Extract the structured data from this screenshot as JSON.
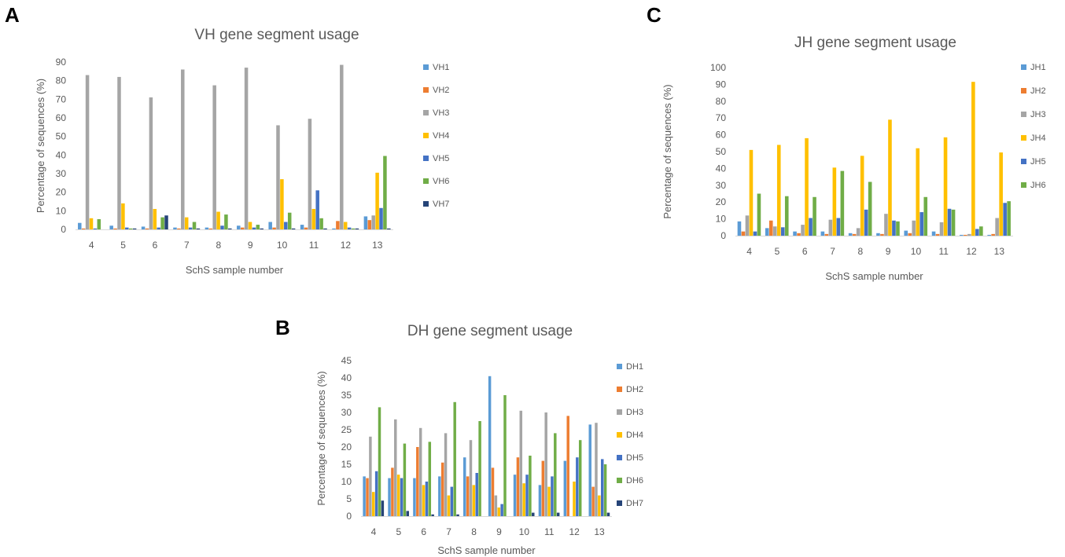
{
  "panels": [
    {
      "letter": "A"
    },
    {
      "letter": "B"
    },
    {
      "letter": "C"
    }
  ],
  "chart_data": [
    {
      "type": "bar",
      "panel": "A",
      "title": "VH gene segment usage",
      "xlabel": "SchS sample number",
      "ylabel": "Percentage of sequences (%)",
      "ylim": [
        0,
        90
      ],
      "ytick_step": 10,
      "categories": [
        "4",
        "5",
        "6",
        "7",
        "8",
        "9",
        "10",
        "11",
        "12",
        "13"
      ],
      "series": [
        {
          "name": "VH1",
          "color": "#5B9BD5",
          "values": [
            3.5,
            2,
            1.5,
            1,
            1,
            2,
            4,
            2.5,
            0.5,
            7
          ]
        },
        {
          "name": "VH2",
          "color": "#ED7D31",
          "values": [
            0.5,
            0.5,
            0.5,
            0.5,
            0.5,
            1,
            1,
            1,
            4.5,
            5
          ]
        },
        {
          "name": "VH3",
          "color": "#A5A5A5",
          "values": [
            83,
            82,
            71,
            86,
            77.5,
            87,
            56,
            59.5,
            88.5,
            7.5
          ]
        },
        {
          "name": "VH4",
          "color": "#FFC000",
          "values": [
            6,
            14,
            11,
            6.5,
            9.5,
            4,
            27,
            11,
            4,
            30.5
          ]
        },
        {
          "name": "VH5",
          "color": "#4472C4",
          "values": [
            0.5,
            1,
            1,
            1,
            2,
            1,
            4,
            21,
            1,
            11.5
          ]
        },
        {
          "name": "VH6",
          "color": "#70AD47",
          "values": [
            5.5,
            0.5,
            6.5,
            4,
            8,
            2.5,
            9,
            6,
            0.5,
            39.5
          ]
        },
        {
          "name": "VH7",
          "color": "#264478",
          "values": [
            0,
            0.5,
            7.5,
            0.5,
            0.5,
            0.5,
            0.5,
            0.5,
            0.5,
            0.5
          ]
        }
      ]
    },
    {
      "type": "bar",
      "panel": "B",
      "title": "DH gene segment usage",
      "xlabel": "SchS sample number",
      "ylabel": "Percentage of sequences (%)",
      "ylim": [
        0,
        45
      ],
      "ytick_step": 5,
      "categories": [
        "4",
        "5",
        "6",
        "7",
        "8",
        "9",
        "10",
        "11",
        "12",
        "13"
      ],
      "series": [
        {
          "name": "DH1",
          "color": "#5B9BD5",
          "values": [
            11.5,
            11,
            11,
            11.5,
            17,
            40.5,
            12,
            9,
            16,
            26.5
          ]
        },
        {
          "name": "DH2",
          "color": "#ED7D31",
          "values": [
            11,
            14,
            20,
            15.5,
            11.5,
            14,
            17,
            16,
            29,
            8.5
          ]
        },
        {
          "name": "DH3",
          "color": "#A5A5A5",
          "values": [
            23,
            28,
            25.5,
            24,
            22,
            6,
            30.5,
            30,
            0,
            27
          ]
        },
        {
          "name": "DH4",
          "color": "#FFC000",
          "values": [
            7,
            12,
            9,
            6,
            9,
            2.5,
            9.5,
            8.5,
            10,
            6
          ]
        },
        {
          "name": "DH5",
          "color": "#4472C4",
          "values": [
            13,
            11,
            10,
            8.5,
            12.5,
            3.5,
            12,
            11.5,
            17,
            16.5
          ]
        },
        {
          "name": "DH6",
          "color": "#70AD47",
          "values": [
            31.5,
            21,
            21.5,
            33,
            27.5,
            35,
            17.5,
            24,
            22,
            15
          ]
        },
        {
          "name": "DH7",
          "color": "#264478",
          "values": [
            4.5,
            1.5,
            0.5,
            0.5,
            0,
            0,
            1,
            1,
            0,
            1
          ]
        }
      ]
    },
    {
      "type": "bar",
      "panel": "C",
      "title": "JH gene segment usage",
      "xlabel": "SchS sample number",
      "ylabel": "Percentage of sequences (%)",
      "ylim": [
        0,
        100
      ],
      "ytick_step": 10,
      "categories": [
        "4",
        "5",
        "6",
        "7",
        "8",
        "9",
        "10",
        "11",
        "12",
        "13"
      ],
      "series": [
        {
          "name": "JH1",
          "color": "#5B9BD5",
          "values": [
            8.5,
            4.5,
            2.5,
            2.5,
            1.5,
            1.5,
            3,
            2.5,
            0.5,
            0.5
          ]
        },
        {
          "name": "JH2",
          "color": "#ED7D31",
          "values": [
            2.5,
            9,
            1.5,
            1,
            1,
            1,
            1.5,
            1,
            0.5,
            1
          ]
        },
        {
          "name": "JH3",
          "color": "#A5A5A5",
          "values": [
            12,
            5.5,
            6.5,
            9.5,
            4.5,
            13,
            9,
            8,
            1,
            10.5
          ]
        },
        {
          "name": "JH4",
          "color": "#FFC000",
          "values": [
            51,
            54,
            58,
            40.5,
            47.5,
            69,
            52,
            58.5,
            91.5,
            49.5
          ]
        },
        {
          "name": "JH5",
          "color": "#4472C4",
          "values": [
            2.5,
            5,
            10.5,
            10.5,
            15.5,
            9,
            14,
            16,
            4,
            19.5
          ]
        },
        {
          "name": "JH6",
          "color": "#70AD47",
          "values": [
            25,
            23.5,
            23,
            38.5,
            32,
            8.5,
            23,
            15.5,
            5.5,
            20.5
          ]
        }
      ]
    }
  ]
}
